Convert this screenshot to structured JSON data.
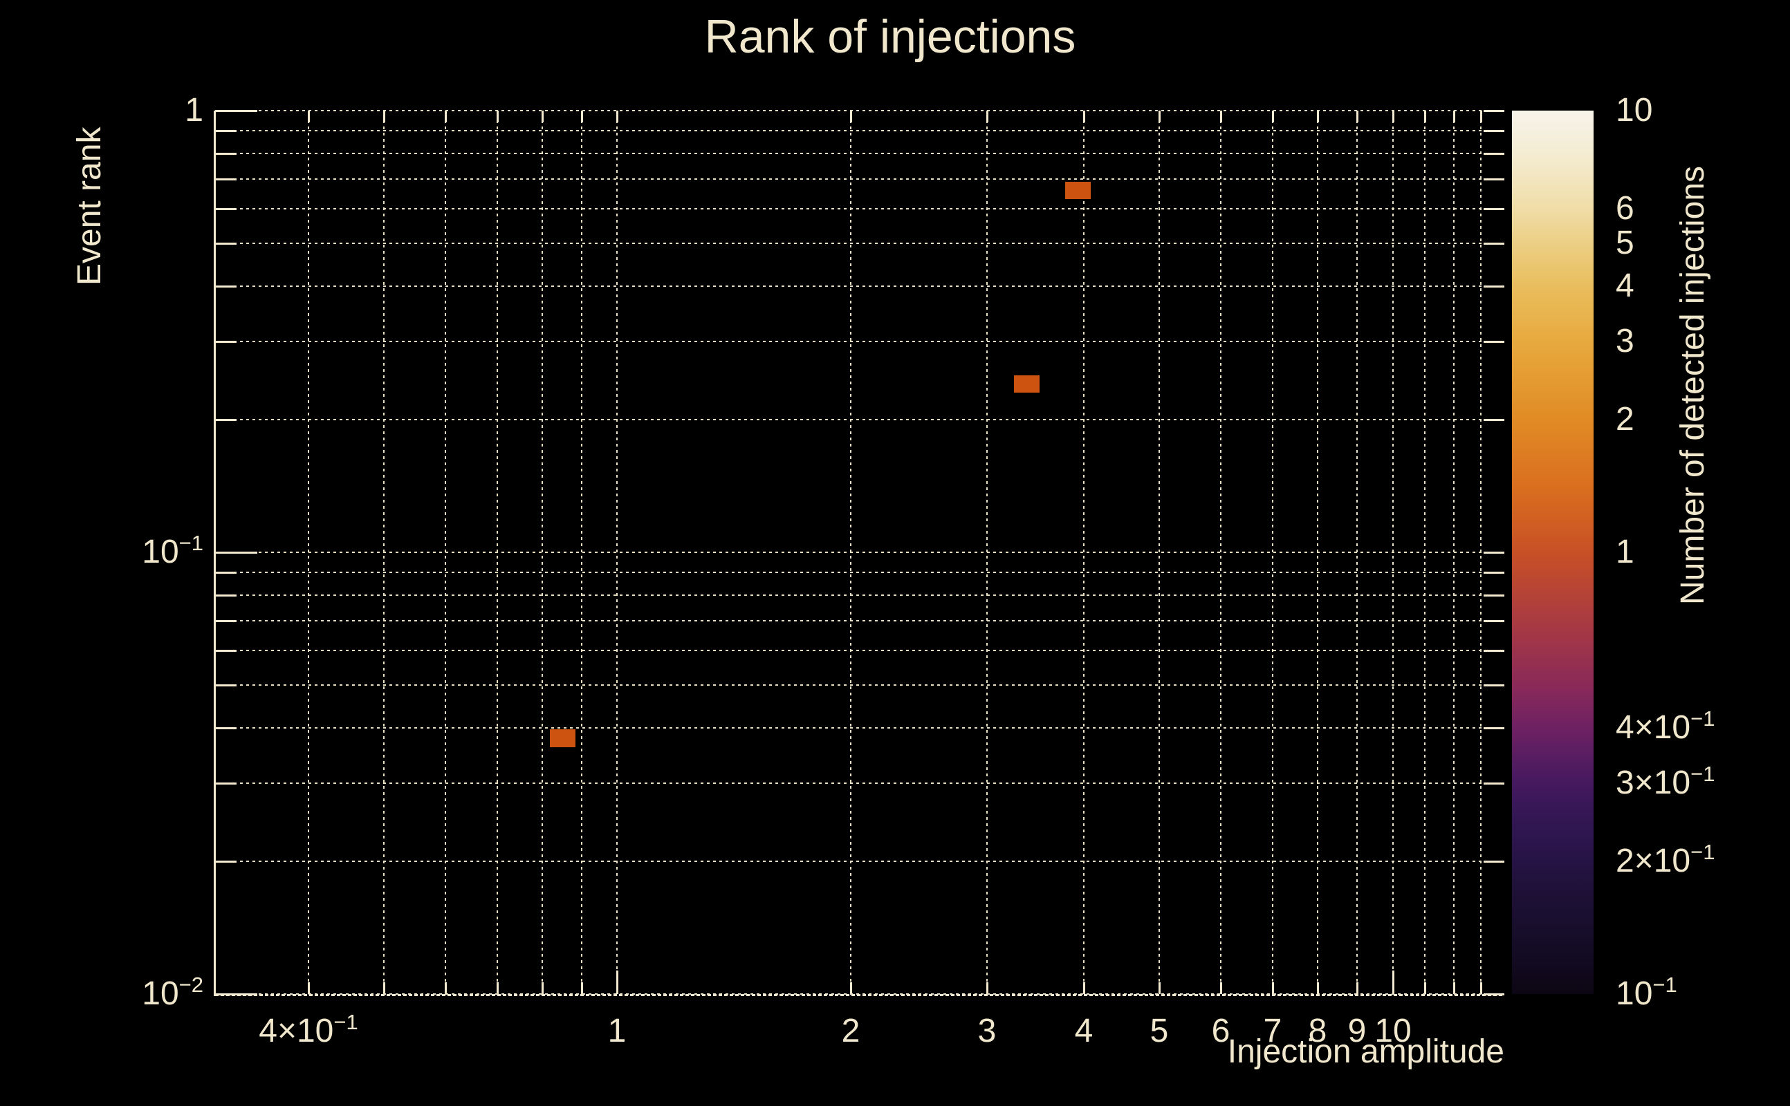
{
  "title": "Rank of injections",
  "colors": {
    "background": "#000000",
    "text": "#f0e7cc",
    "grid": "#e9e0c2",
    "tick": "#f2e9ce",
    "cell_fill": "#cd5310"
  },
  "axes": {
    "x": {
      "label": "Injection amplitude",
      "scale": "log",
      "min": 0.303,
      "max": 13.93,
      "ticks": [
        {
          "v": 0.4,
          "m": "4×10",
          "e": "−1"
        },
        {
          "v": 0.5
        },
        {
          "v": 0.6
        },
        {
          "v": 0.7
        },
        {
          "v": 0.8
        },
        {
          "v": 0.9
        },
        {
          "v": 1,
          "m": "1",
          "major": true
        },
        {
          "v": 2,
          "m": "2"
        },
        {
          "v": 3,
          "m": "3"
        },
        {
          "v": 4,
          "m": "4"
        },
        {
          "v": 5,
          "m": "5"
        },
        {
          "v": 6,
          "m": "6"
        },
        {
          "v": 7,
          "m": "7"
        },
        {
          "v": 8,
          "m": "8"
        },
        {
          "v": 9,
          "m": "9"
        },
        {
          "v": 10,
          "m": "10",
          "major": true
        },
        {
          "v": 11
        },
        {
          "v": 12
        },
        {
          "v": 13
        }
      ]
    },
    "y": {
      "label": "Event rank",
      "scale": "log",
      "min": 0.01,
      "max": 1.0,
      "ticks": [
        {
          "v": 1,
          "m": "1",
          "major": true
        },
        {
          "v": 0.9
        },
        {
          "v": 0.8
        },
        {
          "v": 0.7
        },
        {
          "v": 0.6
        },
        {
          "v": 0.5
        },
        {
          "v": 0.4
        },
        {
          "v": 0.3
        },
        {
          "v": 0.2
        },
        {
          "v": 0.1,
          "m": "10",
          "e": "−1",
          "major": true
        },
        {
          "v": 0.09
        },
        {
          "v": 0.08
        },
        {
          "v": 0.07
        },
        {
          "v": 0.06
        },
        {
          "v": 0.05
        },
        {
          "v": 0.04
        },
        {
          "v": 0.03
        },
        {
          "v": 0.02
        },
        {
          "v": 0.01,
          "m": "10",
          "e": "−2",
          "major": true
        }
      ]
    }
  },
  "colorbar": {
    "label": "Number of detected injections",
    "scale": "log",
    "min": 0.1,
    "max": 10,
    "ticks": [
      {
        "v": 10,
        "m": "10",
        "line": false
      },
      {
        "v": 9
      },
      {
        "v": 8
      },
      {
        "v": 7
      },
      {
        "v": 6,
        "m": "6"
      },
      {
        "v": 5,
        "m": "5"
      },
      {
        "v": 4,
        "m": "4"
      },
      {
        "v": 3,
        "m": "3"
      },
      {
        "v": 2,
        "m": "2"
      },
      {
        "v": 1,
        "m": "1",
        "major": true
      },
      {
        "v": 0.9
      },
      {
        "v": 0.8
      },
      {
        "v": 0.7
      },
      {
        "v": 0.6
      },
      {
        "v": 0.5
      },
      {
        "v": 0.4,
        "m": "4×10",
        "e": "−1"
      },
      {
        "v": 0.3,
        "m": "3×10",
        "e": "−1"
      },
      {
        "v": 0.2,
        "m": "2×10",
        "e": "−1"
      },
      {
        "v": 0.1,
        "m": "10",
        "e": "−1",
        "line": false
      }
    ],
    "gradient": [
      {
        "p": 0.0,
        "c": "#0d0614"
      },
      {
        "p": 0.06,
        "c": "#150d28"
      },
      {
        "p": 0.12,
        "c": "#1f1138"
      },
      {
        "p": 0.15,
        "c": "#261345"
      },
      {
        "p": 0.2,
        "c": "#331754"
      },
      {
        "p": 0.24,
        "c": "#46195f"
      },
      {
        "p": 0.3,
        "c": "#6d2163"
      },
      {
        "p": 0.35,
        "c": "#8b2a58"
      },
      {
        "p": 0.42,
        "c": "#a83a42"
      },
      {
        "p": 0.5,
        "c": "#c85026"
      },
      {
        "p": 0.57,
        "c": "#d96d1f"
      },
      {
        "p": 0.65,
        "c": "#e18b25"
      },
      {
        "p": 0.74,
        "c": "#e7aa3e"
      },
      {
        "p": 0.8,
        "c": "#e9bd5d"
      },
      {
        "p": 0.85,
        "c": "#eccf85"
      },
      {
        "p": 0.89,
        "c": "#f0dda8"
      },
      {
        "p": 0.95,
        "c": "#f4ecd2"
      },
      {
        "p": 1.0,
        "c": "#f6f3ea"
      }
    ]
  },
  "chart_data": {
    "type": "heatmap",
    "title": "Rank of injections",
    "xlabel": "Injection amplitude",
    "ylabel": "Event rank",
    "zlabel": "Number of detected injections",
    "xscale": "log",
    "yscale": "log",
    "zscale": "log",
    "xlim": [
      0.303,
      13.93
    ],
    "ylim": [
      0.01,
      1.0
    ],
    "zlim": [
      0.1,
      10
    ],
    "grid": "dotted minor+major log gridlines on both axes",
    "legend_position": "colorbar-right",
    "cells": [
      {
        "x": 0.85,
        "y": 0.038,
        "x_range": [
          0.818,
          0.883
        ],
        "y_range": [
          0.0363,
          0.0398
        ],
        "count": 1
      },
      {
        "x": 3.37,
        "y": 0.241,
        "x_range": [
          3.25,
          3.51
        ],
        "y_range": [
          0.23,
          0.252
        ],
        "count": 1
      },
      {
        "x": 3.93,
        "y": 0.66,
        "x_range": [
          3.78,
          4.08
        ],
        "y_range": [
          0.63,
          0.69
        ],
        "count": 1
      }
    ]
  }
}
